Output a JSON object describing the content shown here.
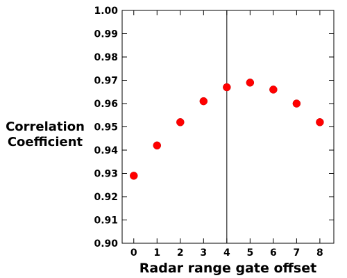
{
  "chart_data": {
    "type": "scatter",
    "title": "",
    "xlabel": "Radar range gate offset",
    "ylabel_lines": [
      "Correlation",
      "Coefficient"
    ],
    "x": [
      0,
      1,
      2,
      3,
      4,
      5,
      6,
      7,
      8
    ],
    "y": [
      0.929,
      0.942,
      0.952,
      0.961,
      0.967,
      0.969,
      0.966,
      0.96,
      0.952
    ],
    "xlim": [
      -0.5,
      8.6
    ],
    "ylim": [
      0.9,
      1.0
    ],
    "xticks": [
      0,
      1,
      2,
      3,
      4,
      5,
      6,
      7,
      8
    ],
    "yticks": [
      "0.90",
      "0.91",
      "0.92",
      "0.93",
      "0.94",
      "0.95",
      "0.96",
      "0.97",
      "0.98",
      "0.99",
      "1.00"
    ],
    "reference_line_x": 4,
    "marker_color": "#ff0000",
    "grid": false,
    "legend": "none"
  }
}
